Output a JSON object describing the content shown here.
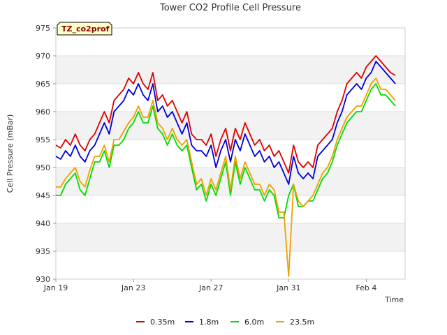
{
  "chart_data": {
    "type": "line",
    "title": "Tower CO2 Profile Cell Pressure",
    "xlabel": "Time",
    "ylabel": "Cell Pressure (mBar)",
    "tag": "TZ_co2prof",
    "x_start": "Jan 19",
    "x_unit": "days",
    "xlim": [
      0,
      18
    ],
    "ylim": [
      930,
      975
    ],
    "yticks": [
      930,
      935,
      940,
      945,
      950,
      955,
      960,
      965,
      970,
      975
    ],
    "xticks": [
      {
        "label": "Jan 19",
        "day": 0
      },
      {
        "label": "Jan 23",
        "day": 4
      },
      {
        "label": "Jan 27",
        "day": 8
      },
      {
        "label": "Jan 31",
        "day": 12
      },
      {
        "label": "Feb 4",
        "day": 16
      }
    ],
    "grid": true,
    "legend_position": "bottom",
    "colors": {
      "0.35m": "#e00000",
      "1.8m": "#0000dd",
      "6.0m": "#00dd00",
      "23.5m": "#f0a000",
      "band": "#f2f2f2",
      "tag_bg": "#ffffcc"
    },
    "x": [
      0,
      0.25,
      0.5,
      0.75,
      1.0,
      1.25,
      1.5,
      1.75,
      2.0,
      2.25,
      2.5,
      2.75,
      3.0,
      3.25,
      3.5,
      3.75,
      4.0,
      4.25,
      4.5,
      4.75,
      5.0,
      5.25,
      5.5,
      5.75,
      6.0,
      6.25,
      6.5,
      6.75,
      7.0,
      7.25,
      7.5,
      7.75,
      8.0,
      8.25,
      8.5,
      8.75,
      9.0,
      9.25,
      9.5,
      9.75,
      10.0,
      10.25,
      10.5,
      10.75,
      11.0,
      11.25,
      11.5,
      11.75,
      12.0,
      12.25,
      12.5,
      12.75,
      13.0,
      13.25,
      13.5,
      13.75,
      14.0,
      14.25,
      14.5,
      14.75,
      15.0,
      15.25,
      15.5,
      15.75,
      16.0,
      16.25,
      16.5,
      16.75,
      17.0,
      17.25,
      17.5
    ],
    "series": [
      {
        "name": "0.35m",
        "values": [
          954,
          953.5,
          955,
          954,
          956,
          954,
          953,
          955,
          956,
          958,
          960,
          958,
          962,
          963,
          964,
          966,
          965,
          967,
          965,
          964,
          967,
          962,
          963,
          961,
          962,
          960,
          958,
          960,
          956,
          955,
          955,
          954,
          956,
          952,
          955,
          957,
          953,
          957,
          955,
          958,
          956,
          954,
          955,
          953,
          954,
          952,
          953,
          951,
          949,
          954,
          951,
          950,
          951,
          950,
          954,
          955,
          956,
          957,
          960,
          962,
          965,
          966,
          967,
          966,
          968,
          969,
          970,
          969,
          968,
          967,
          966.5
        ]
      },
      {
        "name": "1.8m",
        "values": [
          952,
          951.5,
          953,
          952,
          954,
          952,
          951,
          953,
          954,
          956,
          958,
          956,
          960,
          961,
          962,
          964,
          963,
          965,
          963,
          962,
          965,
          960,
          961,
          959,
          960,
          958,
          956,
          958,
          954,
          953,
          953,
          952,
          954,
          950,
          953,
          955,
          951,
          955,
          953,
          956,
          954,
          952,
          953,
          951,
          952,
          950,
          951,
          949,
          947,
          952,
          949,
          948,
          949,
          948,
          952,
          953,
          954,
          955,
          958,
          960,
          963,
          964,
          965,
          964,
          966,
          967,
          969,
          968,
          967,
          966,
          965
        ]
      },
      {
        "name": "6.0m",
        "values": [
          945,
          945,
          947,
          948,
          949,
          946,
          945,
          948,
          951,
          951,
          953,
          950,
          954,
          954,
          955,
          957,
          958,
          960,
          958,
          958,
          961,
          957,
          956,
          954,
          956,
          954,
          953,
          954,
          950,
          946,
          947,
          944,
          947,
          945,
          948,
          951,
          945,
          951,
          947,
          950,
          948,
          946,
          946,
          944,
          946,
          945,
          941,
          941,
          945,
          947,
          943,
          943,
          944,
          944,
          946,
          948,
          949,
          951,
          954,
          956,
          958,
          959,
          960,
          960,
          962,
          964,
          965,
          963,
          963,
          962,
          961
        ]
      },
      {
        "name": "23.5m",
        "values": [
          946.5,
          946.5,
          948,
          949,
          950,
          947.5,
          946.5,
          949.5,
          952,
          952,
          954,
          951,
          955,
          955,
          956.5,
          958,
          959,
          961,
          959,
          959,
          962,
          958,
          957,
          955,
          957,
          955,
          954,
          955,
          951,
          947,
          948,
          945,
          948,
          946,
          949,
          952,
          946,
          952,
          948,
          951,
          949,
          947,
          947,
          945,
          947,
          946,
          942,
          942,
          930.5,
          947,
          944,
          943,
          944,
          945,
          947,
          949,
          950,
          952,
          955,
          957,
          959,
          960,
          961,
          961,
          963,
          965,
          966,
          964,
          964,
          963,
          962
        ]
      }
    ]
  }
}
